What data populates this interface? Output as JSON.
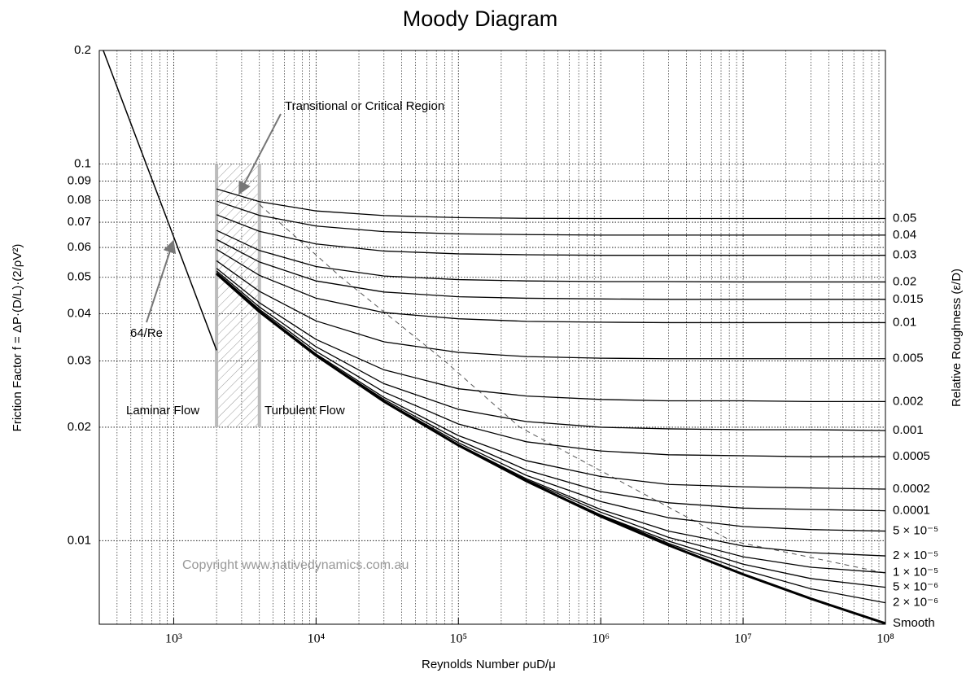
{
  "chart_data": {
    "type": "line",
    "title": "Moody Diagram",
    "x_label": "Reynolds Number ρuD/μ",
    "y_label": "Friction Factor f = ΔP·(D/L)·(2/ρV²)",
    "legend_title": "Relative Roughness (ε/D)",
    "xscale": "log",
    "yscale": "log",
    "grid": true,
    "xlim": [
      300,
      100000000
    ],
    "ylim": [
      0.006,
      0.2
    ],
    "xticks": [
      {
        "value": 1000,
        "label": "10³"
      },
      {
        "value": 10000,
        "label": "10⁴"
      },
      {
        "value": 100000,
        "label": "10⁵"
      },
      {
        "value": 1000000,
        "label": "10⁶"
      },
      {
        "value": 10000000,
        "label": "10⁷"
      },
      {
        "value": 100000000,
        "label": "10⁸"
      }
    ],
    "xminorticks": [
      400,
      500,
      600,
      700,
      800,
      900,
      2000,
      3000,
      4000,
      5000,
      6000,
      7000,
      8000,
      9000,
      20000,
      30000,
      40000,
      50000,
      60000,
      70000,
      80000,
      90000,
      200000,
      300000,
      400000,
      500000,
      600000,
      700000,
      800000,
      900000,
      2000000,
      3000000,
      4000000,
      5000000,
      6000000,
      7000000,
      8000000,
      9000000,
      20000000,
      30000000,
      40000000,
      50000000,
      60000000,
      70000000,
      80000000,
      90000000
    ],
    "yticks": [
      0.2,
      0.1,
      0.09,
      0.08,
      0.07,
      0.06,
      0.05,
      0.04,
      0.03,
      0.02,
      0.01
    ],
    "x": [
      2000,
      4000,
      10000,
      30000,
      100000,
      300000,
      1000000,
      3000000,
      10000000,
      30000000,
      100000000
    ],
    "series": [
      {
        "name": "0.05",
        "color": "#000000",
        "values": [
          0.0858,
          0.0794,
          0.075,
          0.0729,
          0.072,
          0.0717,
          0.0716,
          0.0716,
          0.0716,
          0.0716,
          0.0716
        ]
      },
      {
        "name": "0.04",
        "color": "#000000",
        "values": [
          0.0797,
          0.073,
          0.0684,
          0.0661,
          0.0652,
          0.0649,
          0.0647,
          0.0647,
          0.0647,
          0.0647,
          0.0647
        ]
      },
      {
        "name": "0.03",
        "color": "#000000",
        "values": [
          0.0733,
          0.0662,
          0.0613,
          0.0587,
          0.0577,
          0.0574,
          0.0572,
          0.0572,
          0.0572,
          0.0572,
          0.0572
        ]
      },
      {
        "name": "0.02",
        "color": "#000000",
        "values": [
          0.0666,
          0.0589,
          0.0534,
          0.0504,
          0.0493,
          0.0489,
          0.0487,
          0.0487,
          0.0486,
          0.0486,
          0.0486
        ]
      },
      {
        "name": "0.015",
        "color": "#000000",
        "values": [
          0.063,
          0.0549,
          0.0489,
          0.0457,
          0.0444,
          0.044,
          0.0438,
          0.0437,
          0.0437,
          0.0437,
          0.0437
        ]
      },
      {
        "name": "0.01",
        "color": "#000000",
        "values": [
          0.0593,
          0.0506,
          0.044,
          0.0403,
          0.0388,
          0.0382,
          0.038,
          0.0379,
          0.0379,
          0.0379,
          0.0379
        ]
      },
      {
        "name": "0.005",
        "color": "#000000",
        "values": [
          0.0553,
          0.0459,
          0.0383,
          0.0337,
          0.0316,
          0.0308,
          0.0305,
          0.0304,
          0.0304,
          0.0304,
          0.0304
        ]
      },
      {
        "name": "0.002",
        "color": "#000000",
        "values": [
          0.0528,
          0.0428,
          0.0342,
          0.0284,
          0.0253,
          0.0242,
          0.0237,
          0.0235,
          0.0235,
          0.0234,
          0.0234
        ]
      },
      {
        "name": "0.001",
        "color": "#000000",
        "values": [
          0.052,
          0.0417,
          0.0327,
          0.0261,
          0.0223,
          0.0207,
          0.02,
          0.0198,
          0.0197,
          0.0197,
          0.0196
        ]
      },
      {
        "name": "0.0005",
        "color": "#000000",
        "values": [
          0.0515,
          0.0411,
          0.0318,
          0.0248,
          0.0204,
          0.0183,
          0.0173,
          0.0169,
          0.0168,
          0.0167,
          0.0167
        ]
      },
      {
        "name": "0.0002",
        "color": "#000000",
        "values": [
          0.0513,
          0.0408,
          0.0313,
          0.024,
          0.019,
          0.0163,
          0.0148,
          0.0141,
          0.0139,
          0.0138,
          0.0137
        ]
      },
      {
        "name": "0.0001",
        "color": "#000000",
        "values": [
          0.0512,
          0.0406,
          0.0311,
          0.0237,
          0.0185,
          0.0154,
          0.0135,
          0.0126,
          0.0122,
          0.0121,
          0.012
        ]
      },
      {
        "name": "5 × 10⁻⁵",
        "color": "#000000",
        "values": [
          0.0511,
          0.0406,
          0.0311,
          0.0235,
          0.0182,
          0.0149,
          0.0127,
          0.0115,
          0.0109,
          0.0107,
          0.0106
        ]
      },
      {
        "name": "2 × 10⁻⁵",
        "color": "#000000",
        "values": [
          0.0511,
          0.0405,
          0.031,
          0.0234,
          0.018,
          0.0146,
          0.0121,
          0.0106,
          0.00968,
          0.00929,
          0.00911
        ]
      },
      {
        "name": "1 × 10⁻⁵",
        "color": "#000000",
        "values": [
          0.0511,
          0.0405,
          0.031,
          0.0234,
          0.0179,
          0.0145,
          0.0119,
          0.0102,
          0.00906,
          0.0085,
          0.00822
        ]
      },
      {
        "name": "5 × 10⁻⁶",
        "color": "#000000",
        "values": [
          0.0511,
          0.0405,
          0.031,
          0.0234,
          0.0179,
          0.0144,
          0.0117,
          0.00997,
          0.00866,
          0.00793,
          0.00752
        ]
      },
      {
        "name": "2 × 10⁻⁶",
        "color": "#000000",
        "values": [
          0.0511,
          0.0405,
          0.031,
          0.0234,
          0.0179,
          0.0144,
          0.0117,
          0.00983,
          0.00837,
          0.00745,
          0.00684
        ]
      },
      {
        "name": "Smooth",
        "color": "#000000",
        "line_width": 3,
        "values": [
          0.0511,
          0.0405,
          0.031,
          0.0234,
          0.0179,
          0.0144,
          0.0116,
          0.00972,
          0.00814,
          0.00701,
          0.00603
        ]
      }
    ],
    "laminar": {
      "label": "64/Re",
      "color": "#000000",
      "x": [
        320,
        2000
      ],
      "values": [
        0.2,
        0.032
      ]
    },
    "rough_boundary": {
      "color": "#555555",
      "x": [
        4000,
        15000,
        80000,
        270000,
        8200000,
        100000000
      ],
      "values": [
        0.078,
        0.05,
        0.03,
        0.02,
        0.01,
        0.0082
      ]
    },
    "transition_region": {
      "label": "Transitional or Critical Region",
      "xlim": [
        2000,
        4000
      ],
      "ylim": [
        0.02,
        0.1
      ]
    },
    "laminar_label": "Laminar Flow",
    "turbulent_label": "Turbulent Flow",
    "copyright": "Copyright www.nativedynamics.com.au"
  }
}
